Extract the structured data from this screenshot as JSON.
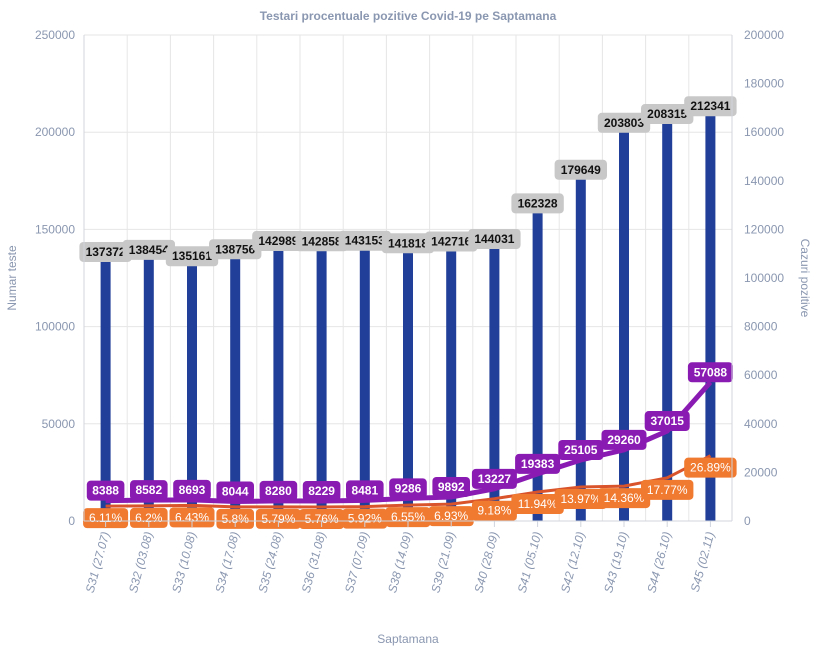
{
  "chart_data": {
    "type": "bar",
    "title": "Testari procentuale pozitive Covid-19 pe Saptamana",
    "xlabel": "Saptamana",
    "ylabel_left": "Numar teste",
    "ylabel_right": "Cazuri pozitive",
    "ylim_left": [
      0,
      250000
    ],
    "ylim_right": [
      0,
      200000
    ],
    "yticks_left": [
      "0",
      "50000",
      "100000",
      "150000",
      "200000",
      "250000"
    ],
    "yticks_right": [
      "0",
      "20000",
      "40000",
      "60000",
      "80000",
      "100000",
      "120000",
      "140000",
      "160000",
      "180000",
      "200000"
    ],
    "grid": true,
    "categories": [
      "S31 (27.07)",
      "S32 (03.08)",
      "S33 (10.08)",
      "S34 (17.08)",
      "S35 (24.08)",
      "S36 (31.08)",
      "S37 (07.09)",
      "S38 (14.09)",
      "S39 (21.09)",
      "S40 (28.09)",
      "S41 (05.10)",
      "S42 (12.10)",
      "S43 (19.10)",
      "S44 (26.10)",
      "S45 (02.11)"
    ],
    "series": [
      {
        "kind": "bar",
        "axis": "left",
        "values": [
          137372,
          138454,
          135161,
          138756,
          142989,
          142858,
          143153,
          141818,
          142716,
          144031,
          162328,
          179649,
          203803,
          208315,
          212341
        ],
        "labels": [
          "137372",
          "138454",
          "135161",
          "138756",
          "142989",
          "142858",
          "143153",
          "141818",
          "142716",
          "144031",
          "162328",
          "179649",
          "203803",
          "208315",
          "212341"
        ]
      },
      {
        "kind": "line",
        "axis": "right",
        "values": [
          8388,
          8582,
          8693,
          8044,
          8280,
          8229,
          8481,
          9286,
          9892,
          13227,
          19383,
          25105,
          29260,
          37015,
          57088
        ],
        "labels": [
          "8388",
          "8582",
          "8693",
          "8044",
          "8280",
          "8229",
          "8481",
          "9286",
          "9892",
          "13227",
          "19383",
          "25105",
          "29260",
          "37015",
          "57088"
        ]
      },
      {
        "kind": "line",
        "axis": "left-percent",
        "values": [
          6.11,
          6.2,
          6.43,
          5.8,
          5.79,
          5.76,
          5.92,
          6.55,
          6.93,
          9.18,
          11.94,
          13.97,
          14.36,
          17.77,
          26.89
        ],
        "labels": [
          "6.11%",
          "6.2%",
          "6.43%",
          "5.8%",
          "5.79%",
          "5.76%",
          "5.92%",
          "6.55%",
          "6.93%",
          "9.18%",
          "11.94%",
          "13.97%",
          "14.36%",
          "17.77%",
          "26.89%"
        ]
      }
    ],
    "colors": {
      "bars": "#213f99",
      "bar_label_bg": "#c8c8c8",
      "bar_label_text": "#111111",
      "cases_line": "#8a1bb2",
      "cases_label_text": "#ffffff",
      "percent_line": "#d9532b",
      "percent_label_bg": "#f07a30",
      "percent_label_text": "#ffffff",
      "axis_text": "#8a97b0",
      "grid": "#e6e6e6",
      "title": "#8a97b0"
    }
  }
}
